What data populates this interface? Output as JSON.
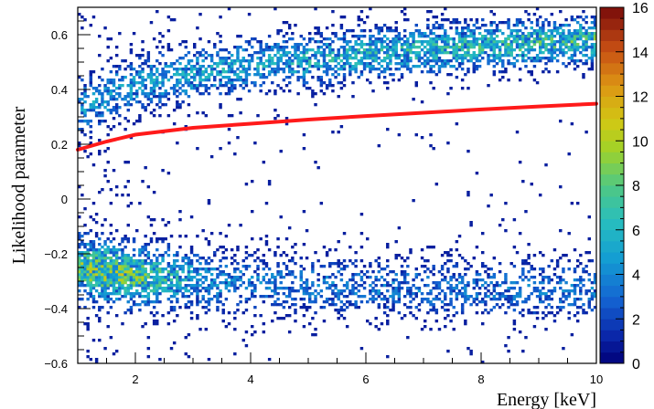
{
  "chart_data": {
    "type": "heatmap",
    "title": "",
    "xlabel": "Energy [keV]",
    "ylabel": "Likelihood parameter",
    "xlim": [
      1,
      10
    ],
    "ylim": [
      -0.6,
      0.7
    ],
    "x_ticks": [
      2,
      4,
      6,
      8,
      10
    ],
    "x_tick_labels": [
      "2",
      "4",
      "6",
      "8",
      "10"
    ],
    "y_ticks": [
      -0.6,
      -0.4,
      -0.2,
      0,
      0.2,
      0.4,
      0.6
    ],
    "y_tick_labels": [
      "−0.6",
      "−0.4",
      "−0.2",
      "0",
      "0.2",
      "0.4",
      "0.6"
    ],
    "colorbar": {
      "min": 0,
      "max": 16,
      "ticks": [
        0,
        2,
        4,
        6,
        8,
        10,
        12,
        14,
        16
      ],
      "tick_labels": [
        "0",
        "2",
        "4",
        "6",
        "8",
        "10",
        "12",
        "14",
        "16"
      ],
      "colormap": "rainbow (dark blue → cyan → green → yellow → red)"
    },
    "bands": [
      {
        "description": "upper population",
        "center_y": [
          [
            1.0,
            0.33
          ],
          [
            2.0,
            0.42
          ],
          [
            4.0,
            0.49
          ],
          [
            6.0,
            0.53
          ],
          [
            8.0,
            0.56
          ],
          [
            10.0,
            0.58
          ]
        ],
        "peak_counts": 11
      },
      {
        "description": "lower population",
        "center_y": [
          [
            1.0,
            -0.25
          ],
          [
            2.0,
            -0.28
          ],
          [
            4.0,
            -0.31
          ],
          [
            6.0,
            -0.32
          ],
          [
            8.0,
            -0.33
          ],
          [
            10.0,
            -0.33
          ]
        ],
        "peak_counts": 11,
        "peak_at_energy": 1.5
      }
    ],
    "series": [
      {
        "type": "line",
        "color": "#ff1a1a",
        "x": [
          1.0,
          1.5,
          2.0,
          3.0,
          4.0,
          5.0,
          6.0,
          7.0,
          8.0,
          9.0,
          10.0
        ],
        "y": [
          0.18,
          0.21,
          0.235,
          0.26,
          0.275,
          0.29,
          0.303,
          0.315,
          0.327,
          0.338,
          0.348
        ]
      }
    ]
  }
}
